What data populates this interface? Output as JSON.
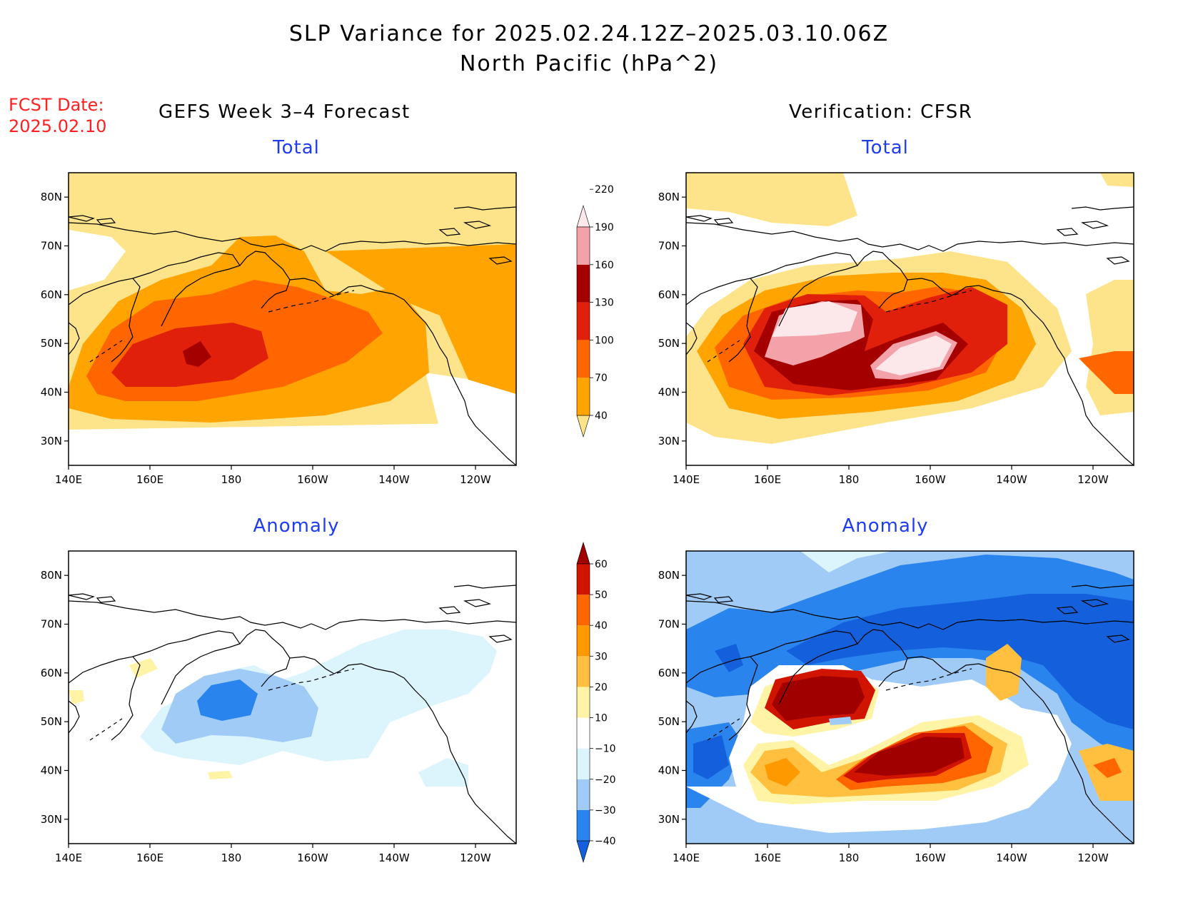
{
  "title": {
    "line1": "SLP Variance for 2025.02.24.12Z–2025.03.10.06Z",
    "line2": "North Pacific (hPa^2)"
  },
  "fcst": {
    "label": "FCST Date:",
    "date": "2025.02.10"
  },
  "columns": {
    "left": "GEFS Week 3–4 Forecast",
    "right": "Verification: CFSR"
  },
  "panels": {
    "top_left": {
      "subtitle": "Total"
    },
    "top_right": {
      "subtitle": "Total"
    },
    "bottom_left": {
      "subtitle": "Anomaly"
    },
    "bottom_right": {
      "subtitle": "Anomaly"
    }
  },
  "axes": {
    "lon_labels": [
      "140E",
      "160E",
      "180",
      "160W",
      "140W",
      "120W"
    ],
    "lat_labels": [
      "80N",
      "70N",
      "60N",
      "50N",
      "40N",
      "30N"
    ],
    "lon_range": [
      "140E",
      "110W"
    ],
    "lat_range": [
      "25N",
      "85N"
    ]
  },
  "total_colorbar": {
    "labels": [
      "40",
      "70",
      "100",
      "130",
      "160",
      "190",
      "220"
    ],
    "colors": [
      "#fde48a",
      "#ffa400",
      "#ff6600",
      "#e0200a",
      "#a50000",
      "#f2a2a8",
      "#fce8ea"
    ]
  },
  "anomaly_colorbar": {
    "labels": [
      "−40",
      "−30",
      "−20",
      "−10",
      "10",
      "20",
      "30",
      "40",
      "50",
      "60"
    ],
    "colors": [
      "#1460dc",
      "#2a84ee",
      "#9fcbf6",
      "#dcf4fc",
      "#ffffff",
      "#fff3a6",
      "#ffc040",
      "#ff9900",
      "#ff6600",
      "#d01400",
      "#a00000"
    ]
  }
}
